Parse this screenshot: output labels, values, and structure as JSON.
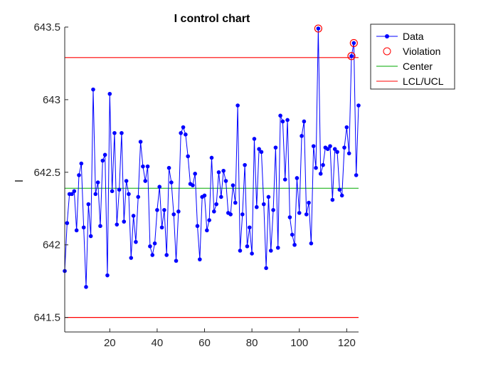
{
  "chart_data": {
    "type": "line",
    "title": "I control chart",
    "xlabel": "",
    "ylabel": "I",
    "xlim": [
      1,
      125
    ],
    "ylim": [
      641.4,
      643.5
    ],
    "x_ticks": [
      20,
      40,
      60,
      80,
      100,
      120
    ],
    "y_ticks": [
      641.5,
      642,
      642.5,
      643,
      643.5
    ],
    "grid": false,
    "legend_placement": "outside-top-right",
    "colors": {
      "data": "#0000ff",
      "violation": "#ff0000",
      "center": "#00aa00",
      "limits": "#ff0000",
      "axis": "#262626"
    },
    "center": 642.39,
    "lcl": 641.5,
    "ucl": 643.29,
    "series": [
      {
        "name": "Data",
        "x": [
          1,
          2,
          3,
          4,
          5,
          6,
          7,
          8,
          9,
          10,
          11,
          12,
          13,
          14,
          15,
          16,
          17,
          18,
          19,
          20,
          21,
          22,
          23,
          24,
          25,
          26,
          27,
          28,
          29,
          30,
          31,
          32,
          33,
          34,
          35,
          36,
          37,
          38,
          39,
          40,
          41,
          42,
          43,
          44,
          45,
          46,
          47,
          48,
          49,
          50,
          51,
          52,
          53,
          54,
          55,
          56,
          57,
          58,
          59,
          60,
          61,
          62,
          63,
          64,
          65,
          66,
          67,
          68,
          69,
          70,
          71,
          72,
          73,
          74,
          75,
          76,
          77,
          78,
          79,
          80,
          81,
          82,
          83,
          84,
          85,
          86,
          87,
          88,
          89,
          90,
          91,
          92,
          93,
          94,
          95,
          96,
          97,
          98,
          99,
          100,
          101,
          102,
          103,
          104,
          105,
          106,
          107,
          108,
          109,
          110,
          111,
          112,
          113,
          114,
          115,
          116,
          117,
          118,
          119,
          120,
          121,
          122,
          123,
          124,
          125
        ],
        "values": [
          641.82,
          642.15,
          642.35,
          642.35,
          642.37,
          642.1,
          642.48,
          642.56,
          642.12,
          641.71,
          642.28,
          642.06,
          643.07,
          642.35,
          642.43,
          642.13,
          642.58,
          642.62,
          641.79,
          643.04,
          642.37,
          642.77,
          642.14,
          642.38,
          642.77,
          642.16,
          642.44,
          642.35,
          641.91,
          642.2,
          642.02,
          642.33,
          642.71,
          642.54,
          642.44,
          642.54,
          641.99,
          641.93,
          642.01,
          642.24,
          642.4,
          642.12,
          642.24,
          641.93,
          642.53,
          642.43,
          642.21,
          641.89,
          642.23,
          642.77,
          642.81,
          642.76,
          642.61,
          642.42,
          642.41,
          642.49,
          642.13,
          641.9,
          642.33,
          642.34,
          642.1,
          642.17,
          642.6,
          642.23,
          642.28,
          642.5,
          642.33,
          642.51,
          642.44,
          642.22,
          642.21,
          642.41,
          642.29,
          642.96,
          641.96,
          642.21,
          642.55,
          641.99,
          642.12,
          641.94,
          642.73,
          642.26,
          642.66,
          642.64,
          642.28,
          641.84,
          642.33,
          641.96,
          642.24,
          642.67,
          641.98,
          642.89,
          642.85,
          642.45,
          642.86,
          642.19,
          642.07,
          642,
          642.46,
          642.22,
          642.75,
          642.85,
          642.21,
          642.29,
          642.01,
          642.68,
          642.53,
          643.49,
          642.49,
          642.55,
          642.67,
          642.66,
          642.68,
          642.31,
          642.66,
          642.64,
          642.38,
          642.34,
          642.67,
          642.81,
          642.63,
          643.3,
          643.39,
          642.48,
          642.96
        ]
      },
      {
        "name": "Violation",
        "x": [
          108,
          122,
          123
        ],
        "values": [
          643.49,
          643.3,
          643.39
        ]
      }
    ],
    "legend": [
      "Data",
      "Violation",
      "Center",
      "LCL/UCL"
    ]
  }
}
